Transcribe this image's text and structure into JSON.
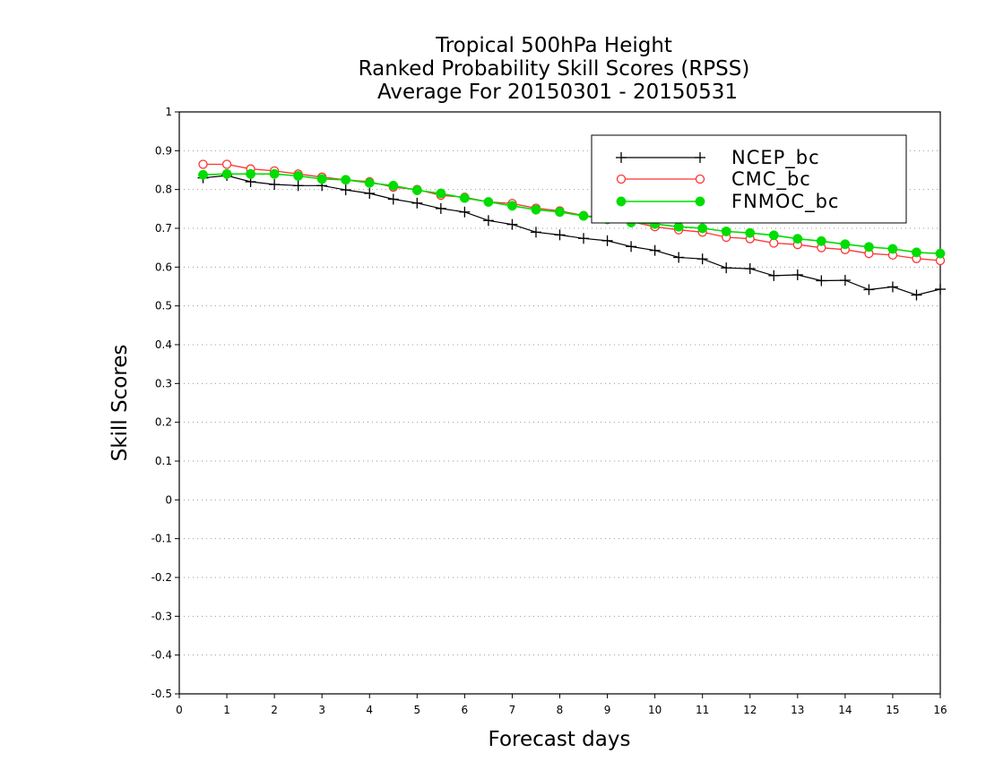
{
  "chart_data": {
    "type": "line",
    "title": [
      "Tropical 500hPa Height",
      "Ranked Probability Skill Scores (RPSS)",
      "Average For 20150301 - 20150531"
    ],
    "xlabel": "Forecast days",
    "ylabel": "Skill Scores",
    "xlim": [
      0,
      16
    ],
    "ylim": [
      -0.5,
      1
    ],
    "xticks": [
      "0",
      "1",
      "2",
      "3",
      "4",
      "5",
      "6",
      "7",
      "8",
      "9",
      "10",
      "11",
      "12",
      "13",
      "14",
      "15",
      "16"
    ],
    "yticks": [
      "1",
      "0.9",
      "0.8",
      "0.7",
      "0.6",
      "0.5",
      "0.4",
      "0.3",
      "0.2",
      "0.1",
      "0",
      "-0.1",
      "-0.2",
      "-0.3",
      "-0.4",
      "-0.5"
    ],
    "grid": true,
    "legend_position": "top-right",
    "x": [
      0.5,
      1,
      1.5,
      2,
      2.5,
      3,
      3.5,
      4,
      4.5,
      5,
      5.5,
      6,
      6.5,
      7,
      7.5,
      8,
      8.5,
      9,
      9.5,
      10,
      10.5,
      11,
      11.5,
      12,
      12.5,
      13,
      13.5,
      14,
      14.5,
      15,
      15.5,
      16
    ],
    "series": [
      {
        "name": "NCEP_bc",
        "color": "#000000",
        "marker": "plus",
        "values": [
          0.83,
          0.836,
          0.82,
          0.813,
          0.81,
          0.81,
          0.799,
          0.79,
          0.775,
          0.765,
          0.751,
          0.742,
          0.72,
          0.71,
          0.69,
          0.683,
          0.674,
          0.668,
          0.653,
          0.643,
          0.625,
          0.621,
          0.598,
          0.596,
          0.578,
          0.58,
          0.565,
          0.566,
          0.542,
          0.549,
          0.528,
          0.543
        ]
      },
      {
        "name": "CMC_bc",
        "color": "#ff3333",
        "marker": "open-circle",
        "values": [
          0.865,
          0.865,
          0.853,
          0.848,
          0.84,
          0.832,
          0.825,
          0.82,
          0.806,
          0.8,
          0.785,
          0.78,
          0.768,
          0.764,
          0.752,
          0.745,
          0.733,
          0.726,
          0.717,
          0.704,
          0.696,
          0.69,
          0.677,
          0.673,
          0.662,
          0.658,
          0.65,
          0.645,
          0.635,
          0.631,
          0.622,
          0.617
        ]
      },
      {
        "name": "FNMOC_bc",
        "color": "#00dd00",
        "marker": "filled-circle",
        "values": [
          0.838,
          0.84,
          0.84,
          0.84,
          0.835,
          0.827,
          0.825,
          0.817,
          0.81,
          0.798,
          0.79,
          0.778,
          0.768,
          0.758,
          0.748,
          0.742,
          0.732,
          0.723,
          0.715,
          0.711,
          0.704,
          0.7,
          0.692,
          0.688,
          0.682,
          0.673,
          0.667,
          0.659,
          0.652,
          0.647,
          0.638,
          0.635
        ]
      }
    ]
  }
}
